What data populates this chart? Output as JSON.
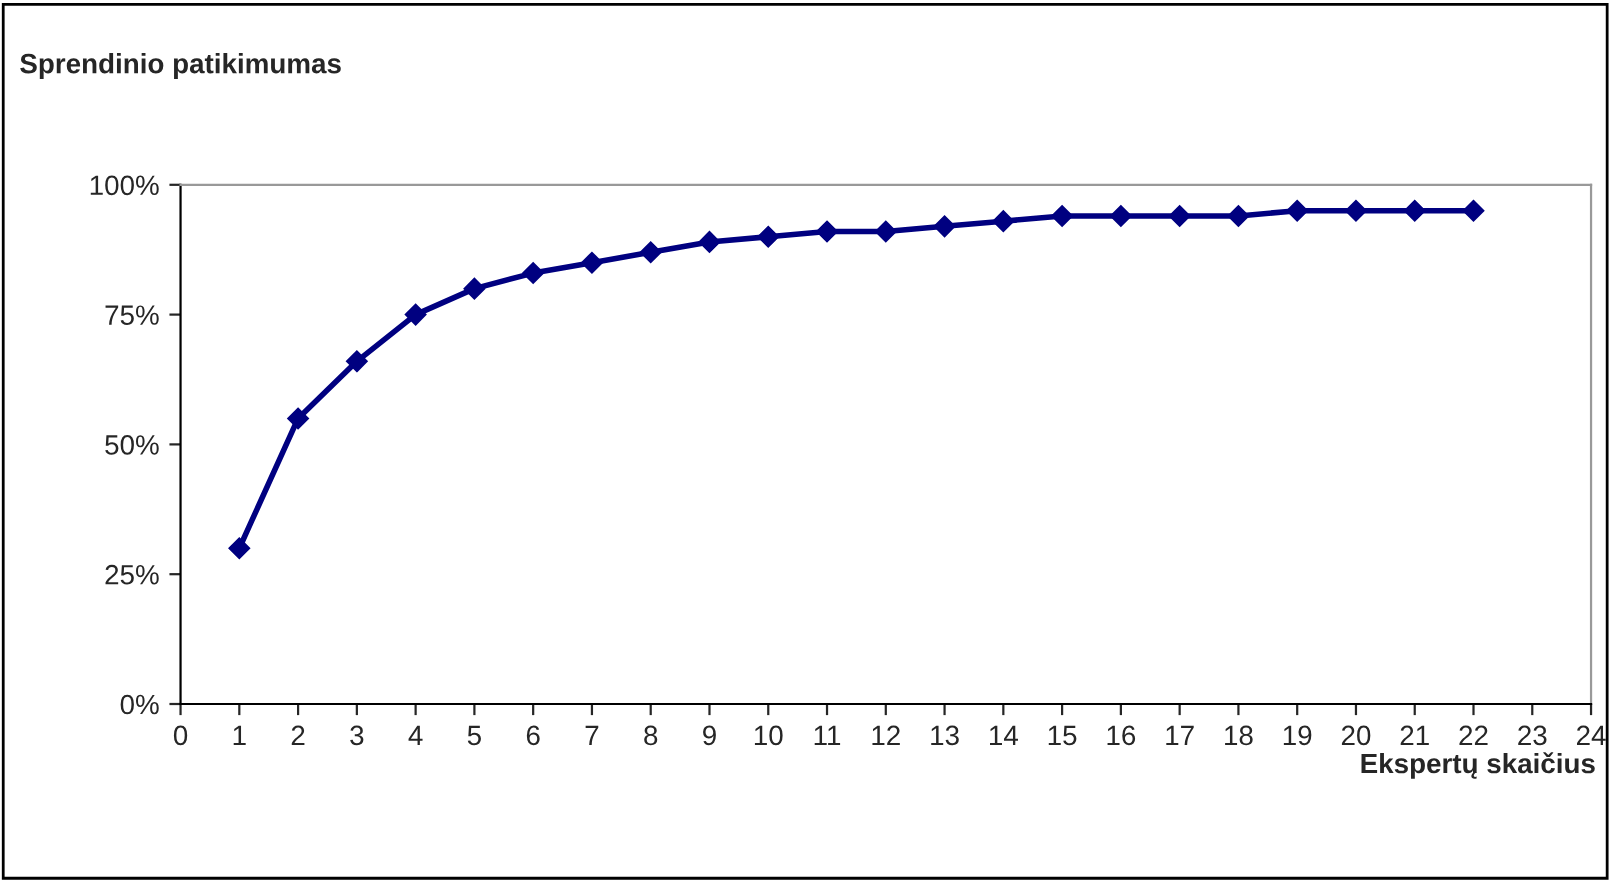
{
  "chart_data": {
    "type": "line",
    "title": "Sprendinio patikimumas",
    "xlabel": "Ekspertų skaičius",
    "x": [
      1,
      2,
      3,
      4,
      5,
      6,
      7,
      8,
      9,
      10,
      11,
      12,
      13,
      14,
      15,
      16,
      17,
      18,
      19,
      20,
      21,
      22
    ],
    "series": [
      {
        "color": "#000080",
        "values": [
          30,
          55,
          66,
          75,
          80,
          83,
          85,
          87,
          89,
          90,
          91,
          91,
          92,
          93,
          94,
          94,
          94,
          94,
          95,
          95,
          95,
          95
        ]
      }
    ],
    "xlim": [
      0,
      24
    ],
    "xticks": [
      0,
      1,
      2,
      3,
      4,
      5,
      6,
      7,
      8,
      9,
      10,
      11,
      12,
      13,
      14,
      15,
      16,
      17,
      18,
      19,
      20,
      21,
      22,
      23,
      24
    ],
    "ylim": [
      0,
      100
    ],
    "yticks": [
      {
        "value": 0,
        "label": "0%"
      },
      {
        "value": 25,
        "label": "25%"
      },
      {
        "value": 50,
        "label": "50%"
      },
      {
        "value": 75,
        "label": "75%"
      },
      {
        "value": 100,
        "label": "100%"
      }
    ],
    "grid": false,
    "marker": "diamond",
    "line_style": "solid"
  }
}
